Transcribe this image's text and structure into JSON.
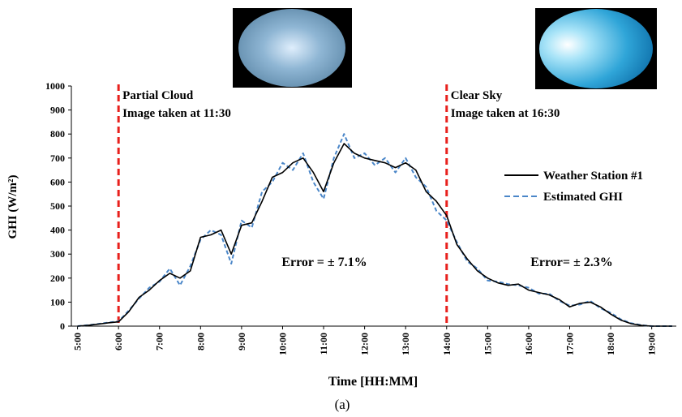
{
  "chart_data": {
    "type": "line",
    "y_label": "GHI (W/m²)",
    "x_label": "Time [HH:MM]",
    "caption": "(a)",
    "x": [
      5,
      5.25,
      5.5,
      5.75,
      6,
      6.25,
      6.5,
      6.75,
      7,
      7.25,
      7.5,
      7.75,
      8,
      8.25,
      8.5,
      8.75,
      9,
      9.25,
      9.5,
      9.75,
      10,
      10.25,
      10.5,
      10.75,
      11,
      11.25,
      11.5,
      11.75,
      12,
      12.25,
      12.5,
      12.75,
      13,
      13.25,
      13.5,
      13.75,
      14,
      14.25,
      14.5,
      14.75,
      15,
      15.25,
      15.5,
      15.75,
      16,
      16.25,
      16.5,
      16.75,
      17,
      17.25,
      17.5,
      17.75,
      18,
      18.25,
      18.5,
      18.75,
      19,
      19.25,
      19.5
    ],
    "series": [
      {
        "name": "Weather Station #1",
        "color": "#000000",
        "dash": false,
        "values": [
          0,
          3,
          8,
          14,
          18,
          60,
          120,
          150,
          190,
          220,
          200,
          230,
          370,
          380,
          400,
          300,
          420,
          430,
          520,
          620,
          640,
          680,
          700,
          640,
          560,
          680,
          760,
          720,
          700,
          690,
          680,
          660,
          680,
          650,
          560,
          520,
          460,
          340,
          280,
          230,
          200,
          180,
          170,
          175,
          150,
          140,
          130,
          110,
          80,
          95,
          100,
          80,
          50,
          25,
          10,
          3,
          0,
          0,
          0
        ]
      },
      {
        "name": "Estimated GHI",
        "color": "#4a86c8",
        "dash": true,
        "values": [
          0,
          4,
          9,
          15,
          20,
          65,
          115,
          160,
          185,
          240,
          170,
          250,
          360,
          400,
          380,
          260,
          440,
          410,
          560,
          600,
          680,
          650,
          720,
          600,
          530,
          700,
          800,
          700,
          720,
          670,
          700,
          640,
          700,
          620,
          580,
          480,
          440,
          350,
          270,
          240,
          190,
          185,
          175,
          170,
          160,
          135,
          135,
          105,
          85,
          90,
          105,
          75,
          55,
          28,
          12,
          4,
          0,
          0,
          0
        ]
      }
    ],
    "xlim": [
      4.85,
      19.6
    ],
    "xticks": [
      {
        "value": 5,
        "label": "5:00"
      },
      {
        "value": 6,
        "label": "6:00"
      },
      {
        "value": 7,
        "label": "7:00"
      },
      {
        "value": 8,
        "label": "8:00"
      },
      {
        "value": 9,
        "label": "9:00"
      },
      {
        "value": 10,
        "label": "10:00"
      },
      {
        "value": 11,
        "label": "11:00"
      },
      {
        "value": 12,
        "label": "12:00"
      },
      {
        "value": 13,
        "label": "13:00"
      },
      {
        "value": 14,
        "label": "14:00"
      },
      {
        "value": 15,
        "label": "15:00"
      },
      {
        "value": 16,
        "label": "16:00"
      },
      {
        "value": 17,
        "label": "17:00"
      },
      {
        "value": 18,
        "label": "18:00"
      },
      {
        "value": 19,
        "label": "19:00"
      }
    ],
    "ylim": [
      0,
      1000
    ],
    "yticks": [
      0,
      100,
      200,
      300,
      400,
      500,
      600,
      700,
      800,
      900,
      1000
    ],
    "vlines": [
      {
        "x": 6,
        "color": "#e8201c",
        "lines": [
          "Partial Cloud",
          "Image taken at 11:30"
        ]
      },
      {
        "x": 14,
        "color": "#e8201c",
        "lines": [
          "Clear Sky",
          "Image taken at 16:30"
        ]
      }
    ],
    "annotations": [
      "Error = ± 7.1%",
      "Error= ± 2.3%"
    ],
    "legend": "right"
  }
}
